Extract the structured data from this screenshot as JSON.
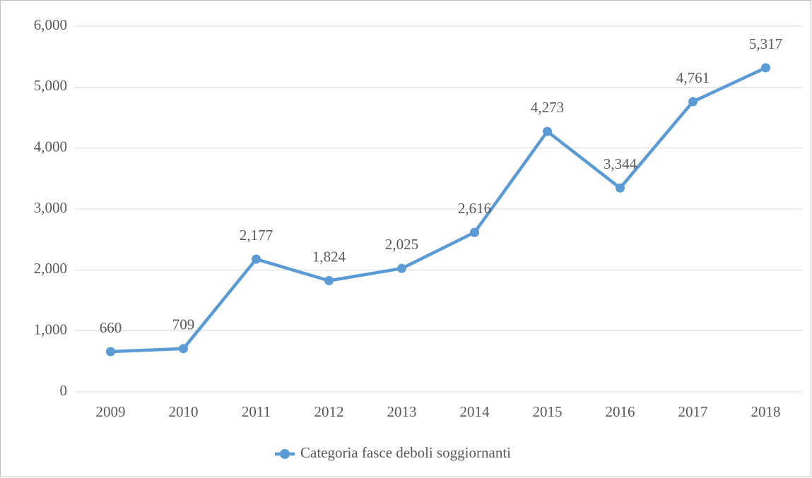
{
  "chart_data": {
    "type": "line",
    "categories": [
      "2009",
      "2010",
      "2011",
      "2012",
      "2013",
      "2014",
      "2015",
      "2016",
      "2017",
      "2018"
    ],
    "series": [
      {
        "name": "Categoria fasce deboli soggiornanti",
        "color": "#5b9bd5",
        "values": [
          660,
          709,
          2177,
          1824,
          2025,
          2616,
          4273,
          3344,
          4761,
          5317
        ],
        "value_labels": [
          "660",
          "709",
          "2,177",
          "1,824",
          "2,025",
          "2,616",
          "4,273",
          "3,344",
          "4,761",
          "5,317"
        ]
      }
    ],
    "ylim": [
      0,
      6000
    ],
    "yticks": [
      0,
      {
        "value": 1000,
        "label": "1,000"
      },
      {
        "value": 2000,
        "label": "2,000"
      },
      {
        "value": 3000,
        "label": "3,000"
      },
      {
        "value": 4000,
        "label": "4,000"
      },
      {
        "value": 5000,
        "label": "5,000"
      },
      {
        "value": 6000,
        "label": "6,000"
      }
    ],
    "grid": true,
    "legend": "bottom"
  }
}
